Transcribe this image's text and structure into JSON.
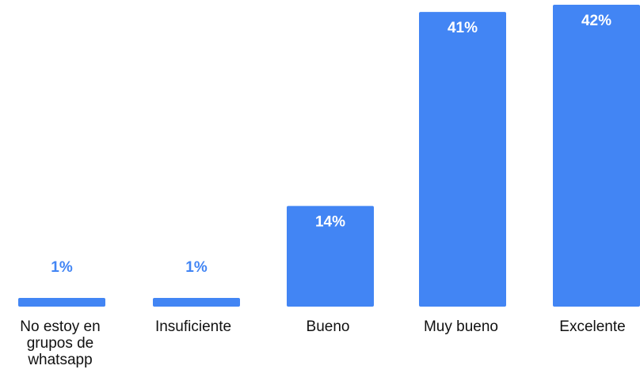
{
  "chart_data": {
    "type": "bar",
    "categories": [
      [
        "No estoy en",
        "grupos de",
        "whatsapp"
      ],
      [
        "Insuficiente"
      ],
      [
        "Bueno"
      ],
      [
        "Muy bueno"
      ],
      [
        "Excelente"
      ]
    ],
    "values": [
      1,
      1,
      14,
      41,
      42
    ],
    "value_labels": [
      "1%",
      "1%",
      "14%",
      "41%",
      "42%"
    ],
    "unit": "%",
    "ylim": [
      0,
      42
    ],
    "grid": false,
    "legend": "none",
    "colors": {
      "bar": "#4285f4",
      "label_inside": "#ffffff",
      "label_outside": "#4285f4",
      "category_text": "#111111"
    }
  }
}
